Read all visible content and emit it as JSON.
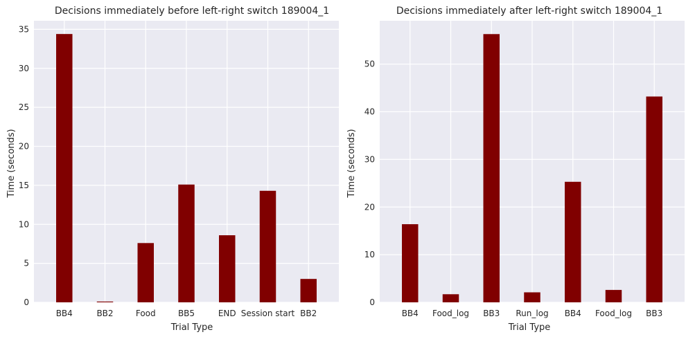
{
  "chart_data": [
    {
      "type": "bar",
      "title": "Decisions immediately before left-right switch 189004_1",
      "xlabel": "Trial Type",
      "ylabel": "Time (seconds)",
      "categories": [
        "BB4",
        "BB2",
        "Food",
        "BB5",
        "END",
        "Session start",
        "BB2"
      ],
      "values": [
        34.4,
        0.1,
        7.6,
        15.1,
        8.6,
        14.3,
        3.0
      ],
      "ylim": [
        0,
        36.1
      ],
      "yticks": [
        0,
        5,
        10,
        15,
        20,
        25,
        30,
        35
      ],
      "grid": true,
      "color": "#800000",
      "background": "#EAEAF2"
    },
    {
      "type": "bar",
      "title": "Decisions immediately after left-right switch 189004_1",
      "xlabel": "Trial Type",
      "ylabel": "Time (seconds)",
      "categories": [
        "BB4",
        "Food_log",
        "BB3",
        "Run_log",
        "BB4",
        "Food_log",
        "BB3"
      ],
      "values": [
        16.4,
        1.7,
        56.3,
        2.1,
        25.3,
        2.6,
        43.2
      ],
      "ylim": [
        0,
        59.1
      ],
      "yticks": [
        0,
        10,
        20,
        30,
        40,
        50
      ],
      "grid": true,
      "color": "#800000",
      "background": "#EAEAF2"
    }
  ]
}
